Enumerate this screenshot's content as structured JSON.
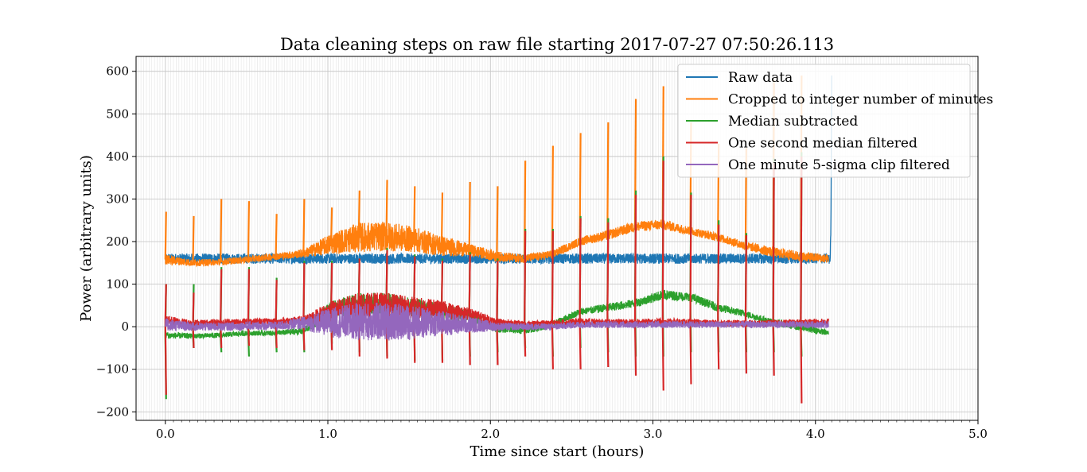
{
  "chart_data": {
    "type": "line",
    "title": "Data cleaning steps on raw file starting 2017-07-27 07:50:26.113",
    "xlabel": "Time since start (hours)",
    "ylabel": "Power (arbitrary units)",
    "xlim": [
      -0.18,
      5.0
    ],
    "ylim": [
      -220,
      635
    ],
    "xticks": [
      0.0,
      1.0,
      2.0,
      3.0,
      4.0,
      5.0
    ],
    "xtick_labels": [
      "0.0",
      "1.0",
      "2.0",
      "3.0",
      "4.0",
      "5.0"
    ],
    "yticks": [
      600,
      500,
      400,
      300,
      200,
      100,
      0,
      -100,
      -200
    ],
    "ytick_labels": [
      "600",
      "500",
      "400",
      "300",
      "200",
      "100",
      "0",
      "−100",
      "−200"
    ],
    "grid": true,
    "minor_grid_x_step_hours": 0.01667,
    "legend_position": "upper right",
    "segment_starts_hours": [
      0.0,
      0.17,
      0.34,
      0.51,
      0.68,
      0.85,
      1.02,
      1.19,
      1.36,
      1.53,
      1.7,
      1.87,
      2.04,
      2.21,
      2.38,
      2.55,
      2.72,
      2.89,
      3.06,
      3.23,
      3.4,
      3.57,
      3.74,
      3.91
    ],
    "series": [
      {
        "name": "Raw data",
        "color": "#1f77b4",
        "x": [
          0.0,
          4.08,
          4.09,
          4.095,
          4.1
        ],
        "baseline": [
          160,
          160,
          155,
          230,
          590
        ],
        "band_halfwidth": [
          12,
          12,
          10,
          10,
          0
        ]
      },
      {
        "name": "Cropped to integer number of minutes",
        "color": "#ff7f0e",
        "x": [
          0.0,
          0.17,
          0.34,
          0.51,
          0.68,
          0.85,
          1.02,
          1.19,
          1.36,
          1.53,
          1.7,
          1.87,
          2.04,
          2.21,
          2.38,
          2.55,
          2.72,
          2.89,
          3.06,
          3.23,
          3.4,
          3.57,
          3.74,
          3.91,
          4.08
        ],
        "baseline": [
          158,
          150,
          152,
          158,
          165,
          172,
          195,
          210,
          212,
          205,
          190,
          180,
          165,
          160,
          170,
          200,
          215,
          235,
          240,
          225,
          210,
          190,
          175,
          165,
          160
        ],
        "band_halfwidth": [
          12,
          8,
          8,
          8,
          8,
          10,
          25,
          35,
          35,
          30,
          25,
          15,
          12,
          10,
          10,
          10,
          12,
          12,
          12,
          10,
          10,
          10,
          12,
          12,
          10
        ],
        "spike_peaks": [
          270,
          260,
          300,
          295,
          265,
          300,
          280,
          320,
          345,
          330,
          315,
          340,
          330,
          390,
          425,
          455,
          480,
          535,
          565,
          480,
          430,
          420,
          580,
          590
        ]
      },
      {
        "name": "Median subtracted",
        "color": "#2ca02c",
        "x": [
          0.0,
          0.17,
          0.34,
          0.51,
          0.68,
          0.85,
          1.02,
          1.19,
          1.36,
          1.53,
          1.7,
          1.87,
          2.04,
          2.21,
          2.38,
          2.55,
          2.72,
          2.89,
          3.06,
          3.23,
          3.4,
          3.57,
          3.74,
          3.91,
          4.08
        ],
        "baseline": [
          -20,
          -22,
          -20,
          -15,
          -15,
          -10,
          40,
          55,
          55,
          45,
          35,
          25,
          -5,
          -10,
          5,
          35,
          45,
          55,
          75,
          70,
          45,
          30,
          10,
          0,
          -15
        ],
        "band_halfwidth": [
          8,
          6,
          6,
          6,
          6,
          8,
          20,
          25,
          25,
          22,
          20,
          15,
          8,
          8,
          8,
          8,
          10,
          10,
          12,
          10,
          10,
          8,
          8,
          10,
          6
        ],
        "spike_peaks": [
          100,
          100,
          140,
          140,
          115,
          155,
          155,
          160,
          185,
          170,
          160,
          175,
          160,
          230,
          230,
          260,
          255,
          320,
          400,
          315,
          250,
          220,
          395,
          410
        ],
        "dip_troughs": [
          -170,
          -50,
          -60,
          -70,
          -60,
          -60,
          -40,
          -60,
          -70,
          -80,
          -80,
          -70,
          -60,
          -50,
          -70,
          -50,
          -60,
          -70,
          -70,
          -60,
          -60,
          -60,
          -60,
          -70
        ]
      },
      {
        "name": "One second median filtered",
        "color": "#d62728",
        "x": [
          0.0,
          0.17,
          0.34,
          0.51,
          0.68,
          0.85,
          1.02,
          1.19,
          1.36,
          1.53,
          1.7,
          1.87,
          2.04,
          2.21,
          2.38,
          2.55,
          2.72,
          2.89,
          3.06,
          3.23,
          3.4,
          3.57,
          3.74,
          3.91,
          4.08
        ],
        "baseline": [
          15,
          8,
          10,
          12,
          12,
          15,
          35,
          50,
          50,
          45,
          40,
          30,
          10,
          5,
          8,
          12,
          10,
          10,
          12,
          10,
          8,
          8,
          8,
          10,
          12
        ],
        "band_halfwidth": [
          12,
          8,
          8,
          8,
          8,
          10,
          25,
          30,
          30,
          25,
          22,
          15,
          10,
          8,
          8,
          8,
          8,
          8,
          8,
          8,
          8,
          8,
          8,
          8,
          8
        ],
        "spike_peaks": [
          100,
          80,
          135,
          135,
          110,
          150,
          150,
          160,
          180,
          165,
          155,
          170,
          155,
          225,
          225,
          255,
          245,
          310,
          390,
          310,
          240,
          215,
          385,
          400
        ],
        "dip_troughs": [
          -160,
          -50,
          -50,
          -45,
          -50,
          -55,
          -55,
          -70,
          -75,
          -85,
          -85,
          -90,
          -90,
          -70,
          -100,
          -100,
          -95,
          -115,
          -150,
          -135,
          -100,
          -110,
          -115,
          -180
        ]
      },
      {
        "name": "One minute 5-sigma clip filtered",
        "color": "#9467bd",
        "x": [
          0.0,
          0.17,
          0.34,
          0.51,
          0.68,
          0.85,
          1.02,
          1.19,
          1.36,
          1.53,
          1.7,
          1.87,
          2.04,
          2.21,
          2.38,
          2.55,
          2.72,
          2.89,
          3.06,
          3.23,
          3.4,
          3.57,
          3.74,
          3.91,
          4.08
        ],
        "baseline": [
          5,
          0,
          0,
          2,
          2,
          8,
          10,
          12,
          12,
          10,
          8,
          5,
          0,
          0,
          0,
          5,
          5,
          5,
          5,
          5,
          5,
          5,
          5,
          5,
          5
        ],
        "band_halfwidth": [
          15,
          10,
          10,
          10,
          10,
          15,
          35,
          45,
          45,
          40,
          30,
          20,
          10,
          8,
          8,
          8,
          8,
          8,
          8,
          8,
          8,
          8,
          8,
          8,
          8
        ]
      }
    ]
  }
}
